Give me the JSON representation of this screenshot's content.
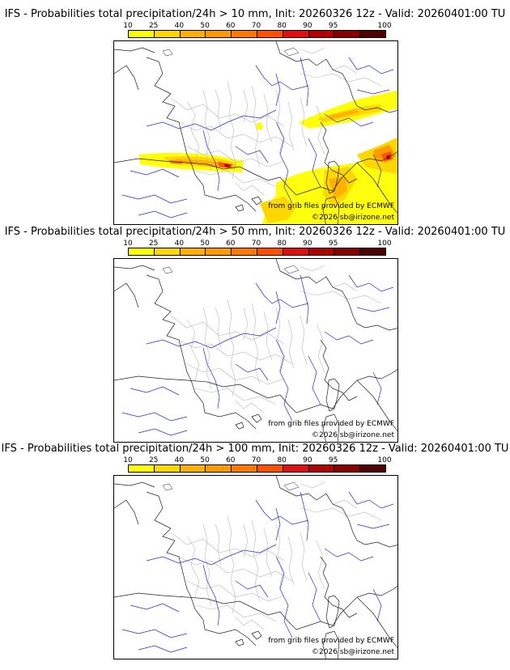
{
  "colorscale": {
    "ticks": [
      "10",
      "25",
      "40",
      "50",
      "60",
      "70",
      "80",
      "90",
      "95",
      "100"
    ],
    "colors": [
      "#ffff00",
      "#ffd700",
      "#ffb000",
      "#ff9a00",
      "#ff7800",
      "#ff5000",
      "#e01010",
      "#b00000",
      "#880000",
      "#500000"
    ]
  },
  "credits": {
    "source": "from grib files provided by ECMWF",
    "copyright": "©2026 sb@irizone.net"
  },
  "panels": [
    {
      "title": "IFS - Probabilities total precipitation/24h > 10 mm, Init: 20260326 12z - Valid: 20260401:00 TU",
      "has_precip": true
    },
    {
      "title": "IFS - Probabilities total precipitation/24h > 50 mm, Init: 20260326 12z - Valid: 20260401:00 TU",
      "has_precip": false
    },
    {
      "title": "IFS - Probabilities total precipitation/24h > 100 mm, Init: 20260326 12z - Valid: 20260401:00 TU",
      "has_precip": false
    }
  ]
}
